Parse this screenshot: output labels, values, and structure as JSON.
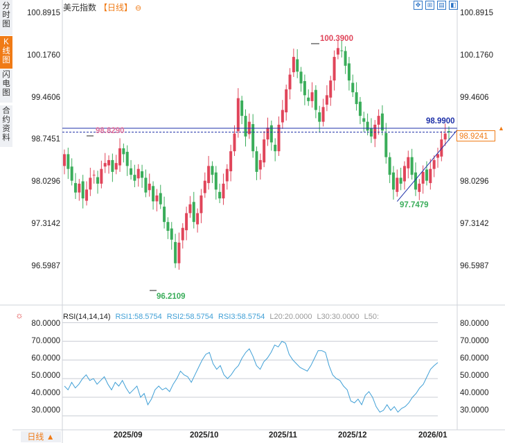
{
  "sidebar": {
    "tabs": [
      {
        "label": "分时图"
      },
      {
        "label": "K线图"
      },
      {
        "label": "闪电图"
      },
      {
        "label": "合约资料"
      }
    ]
  },
  "header": {
    "title": "美元指数",
    "period": "【日线】",
    "circle": "⊖"
  },
  "toolbar": {
    "icons": [
      "fullscreen-icon",
      "move-icon",
      "indicator-icon",
      "back-icon"
    ]
  },
  "price_axis": {
    "left": [
      "100.8915",
      "100.1760",
      "99.4606",
      "98.7451",
      "98.0296",
      "97.3142",
      "96.5987"
    ],
    "right": [
      "100.8915",
      "100.1760",
      "99.4606",
      "98.7451",
      "98.0296",
      "97.3142",
      "96.5987"
    ]
  },
  "annotations": {
    "high": "100.3900",
    "low": "96.2109",
    "mark_left": "98.8290",
    "recent_low": "97.7479",
    "hline": "98.9900",
    "current": "98.9241"
  },
  "rsi": {
    "header": {
      "name": "RSI(14,14,14)",
      "rsi1": "RSI1:58.5754",
      "rsi2": "RSI2:58.5754",
      "rsi3": "RSI3:58.5754",
      "l20": "L20:20.0000",
      "l30": "L30:30.0000",
      "l50": "L50:"
    },
    "axis_left": [
      "80.0000",
      "70.0000",
      "60.0000",
      "50.0000",
      "40.0000",
      "30.0000"
    ],
    "axis_right": [
      "80.0000",
      "70.0000",
      "60.0000",
      "50.0000",
      "40.0000",
      "30.0000"
    ]
  },
  "xaxis": {
    "labels": [
      "2025/09",
      "2025/10",
      "2025/11",
      "2025/12",
      "2026/01"
    ]
  },
  "period_selector": "日线 ▲",
  "colors": {
    "up": "#e0455a",
    "down": "#3aad5a",
    "rsi": "#3f9fd6",
    "accent": "#f07b16",
    "hline": "#1c2fa8"
  },
  "chart_data": [
    {
      "type": "candlestick",
      "title": "美元指数 日线",
      "ylim": [
        96.25,
        100.93
      ],
      "yticks": [
        100.8915,
        100.176,
        99.4606,
        98.7451,
        98.0296,
        97.3142,
        96.5987
      ],
      "hline": 98.99,
      "trendline": [
        [
          97.7479,
          0
        ],
        [
          98.55,
          14
        ]
      ],
      "closes": [
        98.55,
        98.3,
        98.1,
        97.9,
        98.05,
        97.8,
        97.95,
        98.15,
        98.2,
        98.05,
        98.3,
        98.4,
        98.45,
        98.25,
        98.4,
        98.65,
        98.55,
        98.35,
        98.2,
        98.1,
        98.3,
        98.15,
        97.9,
        98.05,
        97.75,
        97.85,
        97.7,
        97.4,
        97.25,
        97.1,
        96.7,
        97.05,
        97.3,
        97.55,
        97.7,
        97.4,
        97.55,
        97.85,
        98.1,
        98.35,
        98.2,
        97.95,
        97.8,
        98.05,
        98.3,
        98.6,
        98.9,
        99.5,
        99.2,
        98.85,
        99.1,
        98.6,
        98.25,
        98.45,
        98.8,
        99.0,
        98.75,
        98.6,
        99.05,
        99.3,
        99.65,
        99.9,
        100.2,
        99.95,
        99.75,
        99.55,
        99.45,
        99.6,
        99.3,
        99.1,
        99.35,
        99.55,
        99.8,
        100.2,
        100.35,
        100.3,
        100.05,
        99.8,
        99.6,
        99.4,
        99.2,
        99.1,
        98.95,
        98.85,
        99.05,
        99.2,
        98.95,
        98.5,
        98.2,
        97.95,
        98.15,
        98.05,
        98.35,
        98.5,
        98.2,
        97.95,
        98.05,
        98.25,
        98.1,
        98.3,
        98.45,
        98.55,
        98.8,
        98.9,
        98.92
      ]
    },
    {
      "type": "line",
      "title": "RSI(14,14,14)",
      "ylim": [
        27,
        82
      ],
      "yticks": [
        80,
        70,
        60,
        50,
        40,
        30
      ],
      "series": [
        {
          "name": "RSI1",
          "values": [
            46,
            44,
            48,
            45,
            47,
            50,
            52,
            49,
            50,
            47,
            49,
            51,
            47,
            44,
            48,
            46,
            49,
            45,
            42,
            44,
            46,
            40,
            42,
            36,
            39,
            44,
            46,
            44,
            45,
            43,
            47,
            50,
            54,
            52,
            51,
            48,
            52,
            56,
            60,
            63,
            64,
            58,
            55,
            57,
            52,
            50,
            52,
            55,
            57,
            61,
            64,
            66,
            62,
            57,
            55,
            59,
            61,
            64,
            68,
            67,
            70,
            69,
            63,
            60,
            58,
            56,
            55,
            54,
            57,
            61,
            65,
            65,
            64,
            57,
            52,
            50,
            49,
            46,
            44,
            38,
            37,
            39,
            36,
            41,
            43,
            40,
            35,
            32,
            33,
            36,
            33,
            35,
            32,
            34,
            35,
            37,
            40,
            42,
            45,
            47,
            51,
            55,
            57,
            58.5754
          ]
        }
      ]
    }
  ]
}
